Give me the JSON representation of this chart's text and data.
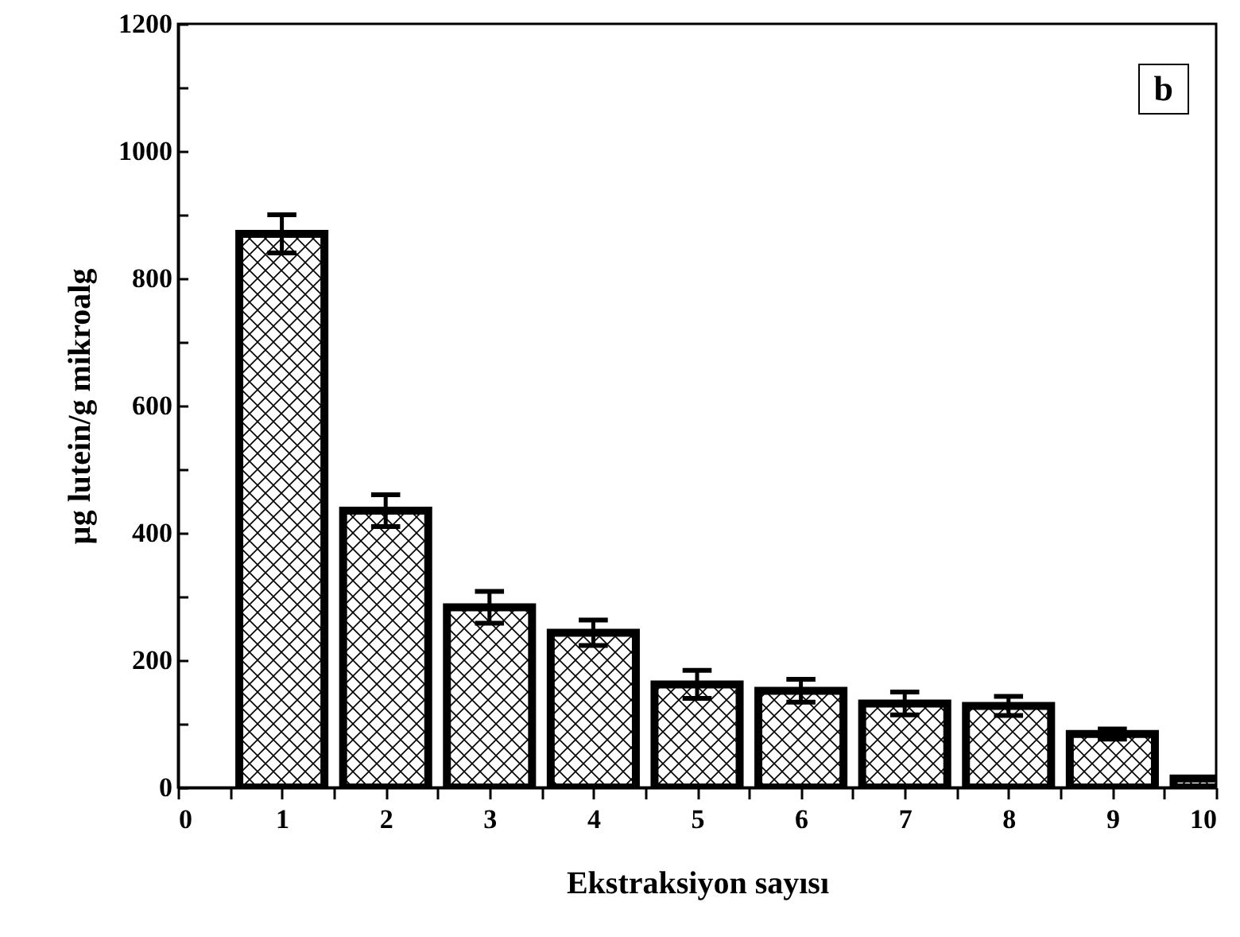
{
  "chart_data": {
    "type": "bar",
    "xlabel": "Ekstraksiyon sayısı",
    "ylabel": "µg lutein/g mikroalg",
    "annotations": [
      "b"
    ],
    "x": [
      1,
      2,
      3,
      4,
      5,
      6,
      7,
      8,
      9,
      10
    ],
    "series": [
      {
        "color": "#000000",
        "values": [
          870,
          435,
          283,
          243,
          162,
          152,
          132,
          128,
          84,
          14
        ],
        "errors": [
          30,
          25,
          25,
          20,
          22,
          18,
          18,
          15,
          8,
          null
        ]
      }
    ],
    "xlim": [
      0,
      10
    ],
    "xticks": [
      0,
      {
        "value": 0.5,
        "label": null
      },
      1,
      {
        "value": 1.5,
        "label": null
      },
      2,
      {
        "value": 2.5,
        "label": null
      },
      3,
      {
        "value": 3.5,
        "label": null
      },
      4,
      {
        "value": 4.5,
        "label": null
      },
      5,
      {
        "value": 5.5,
        "label": null
      },
      6,
      {
        "value": 6.5,
        "label": null
      },
      7,
      {
        "value": 7.5,
        "label": null
      },
      8,
      {
        "value": 8.5,
        "label": null
      },
      9,
      {
        "value": 9.5,
        "label": null
      },
      10
    ],
    "ylim": [
      0,
      1200
    ],
    "yticks": [
      0,
      {
        "value": 100,
        "label": null
      },
      200,
      {
        "value": 300,
        "label": null
      },
      400,
      {
        "value": 500,
        "label": null
      },
      600,
      {
        "value": 700,
        "label": null
      },
      800,
      {
        "value": 900,
        "label": null
      },
      1000,
      {
        "value": 1100,
        "label": null
      },
      1200
    ],
    "grid": false
  }
}
